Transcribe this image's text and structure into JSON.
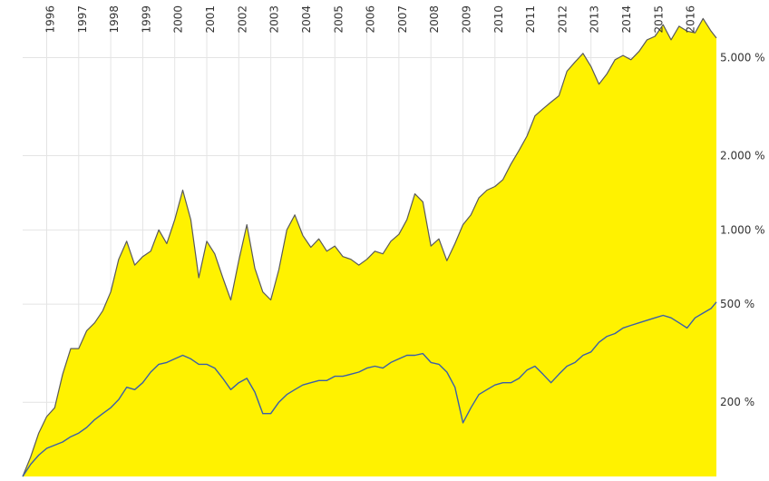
{
  "chart_data": {
    "type": "area",
    "y_scale": "log",
    "ylim": [
      100,
      8000
    ],
    "x_range": [
      "1995-04",
      "2016-12"
    ],
    "grid": true,
    "y_ticks": [
      {
        "value": 200,
        "label": "200 %"
      },
      {
        "value": 500,
        "label": "500 %"
      },
      {
        "value": 1000,
        "label": "1.000 %"
      },
      {
        "value": 2000,
        "label": "2.000 %"
      },
      {
        "value": 5000,
        "label": "5.000 %"
      }
    ],
    "x_ticks": [
      {
        "year": 1996,
        "label": "1996"
      },
      {
        "year": 1997,
        "label": "1997"
      },
      {
        "year": 1998,
        "label": "1998"
      },
      {
        "year": 1999,
        "label": "1999"
      },
      {
        "year": 2000,
        "label": "2000"
      },
      {
        "year": 2001,
        "label": "2001"
      },
      {
        "year": 2002,
        "label": "2002"
      },
      {
        "year": 2003,
        "label": "2003"
      },
      {
        "year": 2004,
        "label": "2004"
      },
      {
        "year": 2005,
        "label": "2005"
      },
      {
        "year": 2006,
        "label": "2006"
      },
      {
        "year": 2007,
        "label": "2007"
      },
      {
        "year": 2008,
        "label": "2008"
      },
      {
        "year": 2009,
        "label": "2009"
      },
      {
        "year": 2010,
        "label": "2010"
      },
      {
        "year": 2011,
        "label": "2011"
      },
      {
        "year": 2012,
        "label": "2012"
      },
      {
        "year": 2013,
        "label": "2013"
      },
      {
        "year": 2014,
        "label": "2014"
      },
      {
        "year": 2015,
        "label": "2015"
      },
      {
        "year": 2016,
        "label": "2016"
      }
    ],
    "series": [
      {
        "color": "#fff200",
        "line_color": "#5a5a5a",
        "style": "area",
        "x": [
          "1995-04",
          "1995-07",
          "1995-10",
          "1996-01",
          "1996-04",
          "1996-07",
          "1996-10",
          "1997-01",
          "1997-04",
          "1997-07",
          "1997-10",
          "1998-01",
          "1998-04",
          "1998-07",
          "1998-10",
          "1999-01",
          "1999-04",
          "1999-07",
          "1999-10",
          "2000-01",
          "2000-04",
          "2000-07",
          "2000-10",
          "2001-01",
          "2001-04",
          "2001-07",
          "2001-10",
          "2002-01",
          "2002-04",
          "2002-07",
          "2002-10",
          "2003-01",
          "2003-04",
          "2003-07",
          "2003-10",
          "2004-01",
          "2004-04",
          "2004-07",
          "2004-10",
          "2005-01",
          "2005-04",
          "2005-07",
          "2005-10",
          "2006-01",
          "2006-04",
          "2006-07",
          "2006-10",
          "2007-01",
          "2007-04",
          "2007-07",
          "2007-10",
          "2008-01",
          "2008-04",
          "2008-07",
          "2008-10",
          "2009-01",
          "2009-04",
          "2009-07",
          "2009-10",
          "2010-01",
          "2010-04",
          "2010-07",
          "2010-10",
          "2011-01",
          "2011-04",
          "2011-07",
          "2011-10",
          "2012-01",
          "2012-04",
          "2012-07",
          "2012-10",
          "2013-01",
          "2013-04",
          "2013-07",
          "2013-10",
          "2014-01",
          "2014-04",
          "2014-07",
          "2014-10",
          "2015-01",
          "2015-04",
          "2015-07",
          "2015-10",
          "2016-01",
          "2016-04",
          "2016-07",
          "2016-10",
          "2016-12"
        ],
        "values": [
          100,
          120,
          150,
          175,
          190,
          260,
          330,
          330,
          390,
          420,
          470,
          560,
          760,
          900,
          720,
          780,
          820,
          1000,
          880,
          1100,
          1450,
          1100,
          640,
          900,
          800,
          640,
          520,
          750,
          1050,
          700,
          560,
          520,
          690,
          1000,
          1150,
          950,
          850,
          920,
          820,
          860,
          780,
          760,
          720,
          760,
          820,
          800,
          900,
          960,
          1100,
          1400,
          1300,
          860,
          920,
          750,
          880,
          1050,
          1150,
          1350,
          1450,
          1500,
          1600,
          1850,
          2100,
          2400,
          2900,
          3100,
          3300,
          3500,
          4400,
          4800,
          5200,
          4600,
          3900,
          4300,
          4900,
          5100,
          4900,
          5300,
          5900,
          6100,
          6800,
          5900,
          6700,
          6400,
          6300,
          7200,
          6400,
          6000
        ]
      },
      {
        "color": "#3b5fa8",
        "style": "line",
        "x": [
          "1995-04",
          "1995-07",
          "1995-10",
          "1996-01",
          "1996-04",
          "1996-07",
          "1996-10",
          "1997-01",
          "1997-04",
          "1997-07",
          "1997-10",
          "1998-01",
          "1998-04",
          "1998-07",
          "1998-10",
          "1999-01",
          "1999-04",
          "1999-07",
          "1999-10",
          "2000-01",
          "2000-04",
          "2000-07",
          "2000-10",
          "2001-01",
          "2001-04",
          "2001-07",
          "2001-10",
          "2002-01",
          "2002-04",
          "2002-07",
          "2002-10",
          "2003-01",
          "2003-04",
          "2003-07",
          "2003-10",
          "2004-01",
          "2004-04",
          "2004-07",
          "2004-10",
          "2005-01",
          "2005-04",
          "2005-07",
          "2005-10",
          "2006-01",
          "2006-04",
          "2006-07",
          "2006-10",
          "2007-01",
          "2007-04",
          "2007-07",
          "2007-10",
          "2008-01",
          "2008-04",
          "2008-07",
          "2008-10",
          "2009-01",
          "2009-04",
          "2009-07",
          "2009-10",
          "2010-01",
          "2010-04",
          "2010-07",
          "2010-10",
          "2011-01",
          "2011-04",
          "2011-07",
          "2011-10",
          "2012-01",
          "2012-04",
          "2012-07",
          "2012-10",
          "2013-01",
          "2013-04",
          "2013-07",
          "2013-10",
          "2014-01",
          "2014-04",
          "2014-07",
          "2014-10",
          "2015-01",
          "2015-04",
          "2015-07",
          "2015-10",
          "2016-01",
          "2016-04",
          "2016-07",
          "2016-10",
          "2016-12"
        ],
        "values": [
          100,
          112,
          122,
          130,
          134,
          138,
          145,
          150,
          158,
          170,
          180,
          190,
          205,
          230,
          225,
          240,
          265,
          285,
          290,
          300,
          310,
          300,
          285,
          285,
          275,
          250,
          225,
          240,
          250,
          220,
          180,
          180,
          200,
          215,
          225,
          235,
          240,
          245,
          245,
          255,
          255,
          260,
          265,
          275,
          280,
          275,
          290,
          300,
          310,
          310,
          315,
          290,
          285,
          265,
          230,
          165,
          190,
          215,
          225,
          235,
          240,
          240,
          250,
          270,
          280,
          260,
          240,
          260,
          280,
          290,
          310,
          320,
          350,
          370,
          380,
          400,
          410,
          420,
          430,
          440,
          450,
          440,
          420,
          400,
          440,
          460,
          480,
          510
        ]
      }
    ]
  }
}
